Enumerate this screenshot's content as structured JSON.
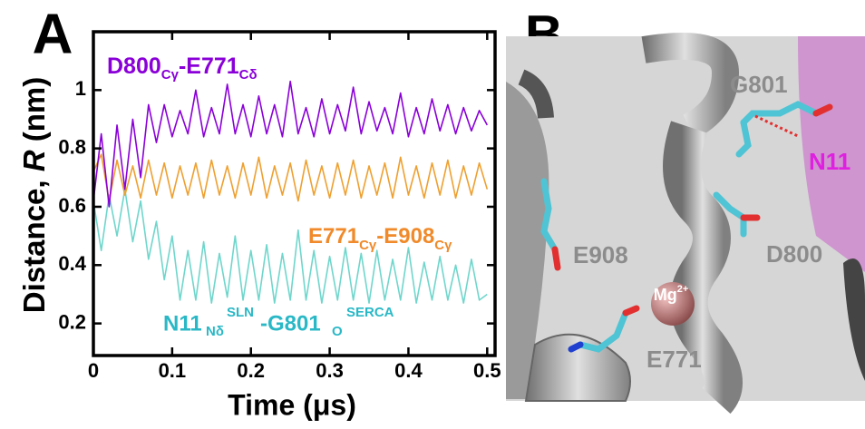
{
  "panel_labels": [
    "A",
    "B"
  ],
  "chart_data": {
    "type": "line",
    "y_label_parts": [
      "Distance, ",
      "R",
      " (nm)"
    ],
    "x_label": "Time (μs)",
    "x": [
      0,
      0.01,
      0.02,
      0.03,
      0.04,
      0.05,
      0.06,
      0.07,
      0.08,
      0.09,
      0.1,
      0.11,
      0.12,
      0.13,
      0.14,
      0.15,
      0.16,
      0.17,
      0.18,
      0.19,
      0.2,
      0.21,
      0.22,
      0.23,
      0.24,
      0.25,
      0.26,
      0.27,
      0.28,
      0.29,
      0.3,
      0.31,
      0.32,
      0.33,
      0.34,
      0.35,
      0.36,
      0.37,
      0.38,
      0.39,
      0.4,
      0.41,
      0.42,
      0.43,
      0.44,
      0.45,
      0.46,
      0.47,
      0.48,
      0.49,
      0.5
    ],
    "xlim": [
      0,
      0.51
    ],
    "ylim": [
      0.09,
      1.2
    ],
    "xticks": [
      0,
      0.1,
      0.2,
      0.3,
      0.4,
      0.5
    ],
    "yticks": [
      0.2,
      0.4,
      0.6,
      0.8,
      1
    ],
    "series": [
      {
        "label_parts": [
          "D800",
          "Cγ",
          "-E771",
          "Cδ"
        ],
        "color": "#8a00d8",
        "values": [
          0.62,
          0.85,
          0.6,
          0.88,
          0.66,
          0.9,
          0.7,
          0.95,
          0.82,
          0.95,
          0.84,
          0.93,
          0.85,
          1.0,
          0.84,
          0.94,
          0.85,
          1.02,
          0.85,
          0.95,
          0.84,
          0.98,
          0.85,
          0.95,
          0.84,
          1.03,
          0.85,
          0.94,
          0.84,
          0.97,
          0.85,
          0.95,
          0.86,
          1.01,
          0.85,
          0.96,
          0.86,
          0.94,
          0.85,
          0.99,
          0.84,
          0.94,
          0.85,
          0.97,
          0.86,
          0.95,
          0.85,
          0.94,
          0.86,
          0.93,
          0.88
        ]
      },
      {
        "label_parts": [
          "E771",
          "Cγ",
          "-E908",
          "Cγ"
        ],
        "color": "#eea030",
        "values": [
          0.72,
          0.78,
          0.62,
          0.76,
          0.64,
          0.74,
          0.63,
          0.76,
          0.64,
          0.75,
          0.63,
          0.74,
          0.64,
          0.75,
          0.63,
          0.76,
          0.64,
          0.74,
          0.63,
          0.75,
          0.64,
          0.77,
          0.63,
          0.74,
          0.64,
          0.75,
          0.62,
          0.76,
          0.64,
          0.74,
          0.63,
          0.75,
          0.64,
          0.76,
          0.63,
          0.74,
          0.64,
          0.75,
          0.63,
          0.77,
          0.64,
          0.74,
          0.63,
          0.75,
          0.64,
          0.76,
          0.63,
          0.74,
          0.64,
          0.75,
          0.66
        ]
      },
      {
        "label_parts": [
          "N11",
          "Nδ",
          "SLN",
          "-G801",
          "O",
          "SERCA"
        ],
        "color": "#6fd6cc",
        "values": [
          0.62,
          0.45,
          0.64,
          0.5,
          0.66,
          0.48,
          0.62,
          0.42,
          0.55,
          0.35,
          0.5,
          0.28,
          0.45,
          0.28,
          0.48,
          0.27,
          0.44,
          0.29,
          0.5,
          0.28,
          0.45,
          0.28,
          0.47,
          0.27,
          0.44,
          0.28,
          0.52,
          0.28,
          0.45,
          0.27,
          0.43,
          0.28,
          0.46,
          0.28,
          0.44,
          0.27,
          0.45,
          0.28,
          0.42,
          0.28,
          0.46,
          0.27,
          0.41,
          0.28,
          0.43,
          0.28,
          0.4,
          0.27,
          0.42,
          0.28,
          0.3
        ]
      }
    ]
  },
  "structure_labels": {
    "g801": "G801",
    "n11": "N11",
    "e908": "E908",
    "d800": "D800",
    "mg": "Mg",
    "mg_charge": "2+",
    "e771": "E771"
  }
}
